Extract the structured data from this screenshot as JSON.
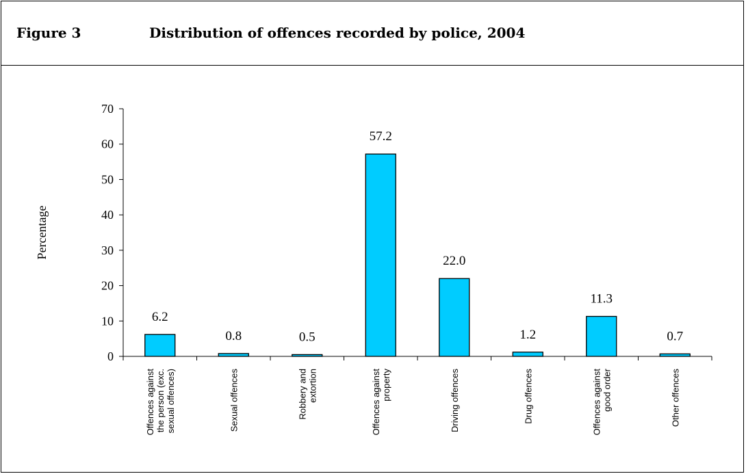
{
  "figure": {
    "number": "Figure 3",
    "title": "Distribution of offences recorded by police, 2004"
  },
  "chart_data": {
    "type": "bar",
    "title": "Distribution of offences recorded by police, 2004",
    "xlabel": "",
    "ylabel": "Percentage",
    "ylim": [
      0,
      70
    ],
    "yticks": [
      0,
      10,
      20,
      30,
      40,
      50,
      60,
      70
    ],
    "categories": [
      [
        "Offences against",
        "the person (exc.",
        "sexual offences)"
      ],
      [
        "Sexual offences"
      ],
      [
        "Robbery and",
        "extortion"
      ],
      [
        "Offences against",
        "property"
      ],
      [
        "Driving offences"
      ],
      [
        "Drug offences"
      ],
      [
        "Offences against",
        "good order"
      ],
      [
        "Other offences"
      ]
    ],
    "values": [
      6.2,
      0.8,
      0.5,
      57.2,
      22.0,
      1.2,
      11.3,
      0.7
    ],
    "value_labels": [
      "6.2",
      "0.8",
      "0.5",
      "57.2",
      "22.0",
      "1.2",
      "11.3",
      "0.7"
    ],
    "bar_color": "#00ccff",
    "grid": false,
    "legend": "none"
  }
}
